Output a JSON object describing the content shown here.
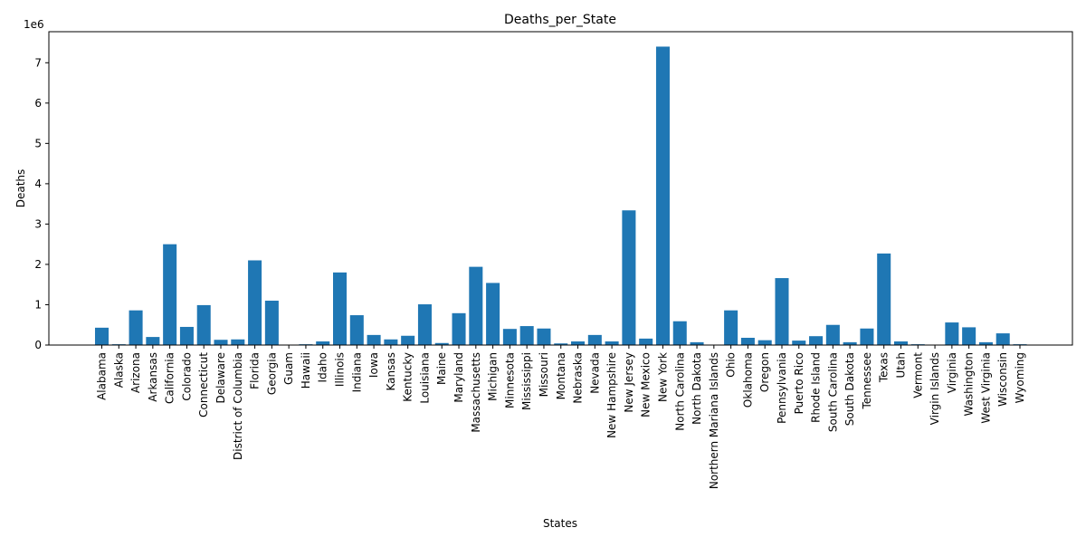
{
  "chart_data": {
    "type": "bar",
    "title": "Deaths_per_State",
    "xlabel": "States",
    "ylabel": "Deaths",
    "y_offset_label": "1e6",
    "bar_color": "#1f77b4",
    "ylim": [
      0,
      7770000
    ],
    "y_ticks": [
      0,
      1000000,
      2000000,
      3000000,
      4000000,
      5000000,
      6000000,
      7000000
    ],
    "y_tick_labels": [
      "0",
      "1",
      "2",
      "3",
      "4",
      "5",
      "6",
      "7"
    ],
    "grid": false,
    "categories": [
      "Alabama",
      "Alaska",
      "Arizona",
      "Arkansas",
      "California",
      "Colorado",
      "Connecticut",
      "Delaware",
      "District of Columbia",
      "Florida",
      "Georgia",
      "Guam",
      "Hawaii",
      "Idaho",
      "Illinois",
      "Indiana",
      "Iowa",
      "Kansas",
      "Kentucky",
      "Louisiana",
      "Maine",
      "Maryland",
      "Massachusetts",
      "Michigan",
      "Minnesota",
      "Mississippi",
      "Missouri",
      "Montana",
      "Nebraska",
      "Nevada",
      "New Hampshire",
      "New Jersey",
      "New Mexico",
      "New York",
      "North Carolina",
      "North Dakota",
      "Northern Mariana Islands",
      "Ohio",
      "Oklahoma",
      "Oregon",
      "Pennsylvania",
      "Puerto Rico",
      "Rhode Island",
      "South Carolina",
      "South Dakota",
      "Tennessee",
      "Texas",
      "Utah",
      "Vermont",
      "Virgin Islands",
      "Virginia",
      "Washington",
      "West Virginia",
      "Wisconsin",
      "Wyoming"
    ],
    "values": [
      430000,
      20000,
      860000,
      200000,
      2500000,
      450000,
      990000,
      130000,
      140000,
      2100000,
      1100000,
      10000,
      20000,
      90000,
      1800000,
      740000,
      250000,
      140000,
      230000,
      1010000,
      50000,
      790000,
      1940000,
      1540000,
      400000,
      470000,
      410000,
      40000,
      90000,
      250000,
      90000,
      3340000,
      160000,
      7400000,
      590000,
      70000,
      1000,
      860000,
      180000,
      120000,
      1660000,
      110000,
      220000,
      500000,
      70000,
      410000,
      2270000,
      90000,
      20000,
      5000,
      560000,
      440000,
      70000,
      290000,
      20000
    ]
  }
}
